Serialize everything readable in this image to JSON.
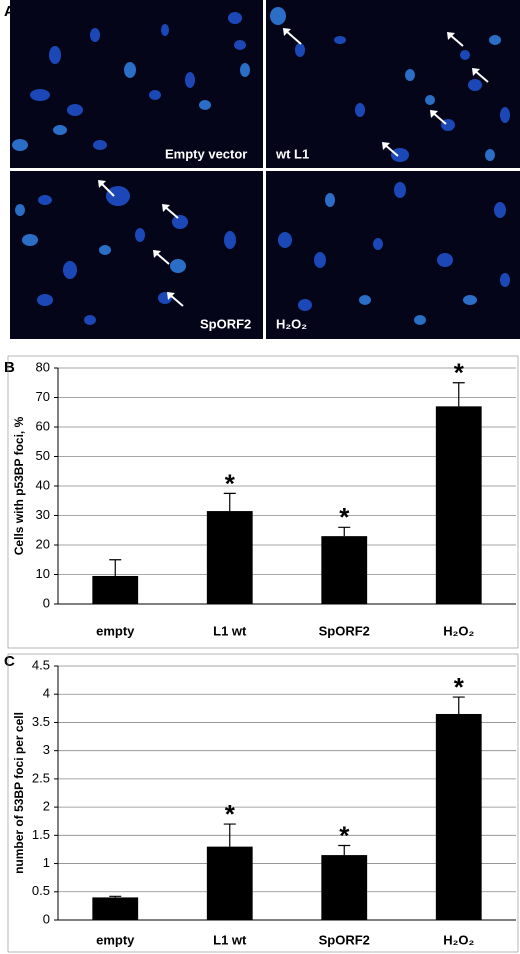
{
  "panel_labels": [
    "A",
    "B",
    "C"
  ],
  "micrographs": {
    "labels": [
      "Empty vector",
      "wt L1",
      "SpORF2",
      "H₂O₂"
    ]
  },
  "chart_data": [
    {
      "type": "bar",
      "y_label": "Cells with p53BP foci, %",
      "categories": [
        "empty",
        "L1 wt",
        "SpORF2",
        "H₂O₂"
      ],
      "values": [
        9.5,
        31.5,
        23,
        67
      ],
      "errors": [
        5.5,
        6,
        3,
        8
      ],
      "annotations": [
        null,
        "*",
        "*",
        "*"
      ],
      "color": "#000000",
      "ylim": [
        0,
        80
      ],
      "yticks": [
        0,
        10,
        20,
        30,
        40,
        50,
        60,
        70,
        80
      ],
      "grid": true
    },
    {
      "type": "bar",
      "y_label": "number of 53BP foci per cell",
      "categories": [
        "empty",
        "L1 wt",
        "SpORF2",
        "H₂O₂"
      ],
      "values": [
        0.4,
        1.3,
        1.15,
        3.65
      ],
      "errors": [
        0.02,
        0.4,
        0.17,
        0.3
      ],
      "annotations": [
        null,
        "*",
        "*",
        "*"
      ],
      "color": "#000000",
      "ylim": [
        0,
        4.5
      ],
      "yticks": [
        0,
        0.5,
        1,
        1.5,
        2,
        2.5,
        3,
        3.5,
        4,
        4.5
      ],
      "grid": true
    }
  ]
}
